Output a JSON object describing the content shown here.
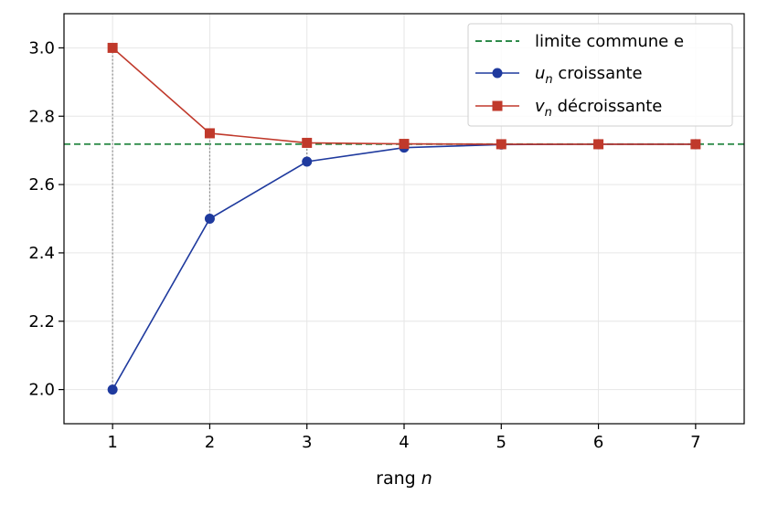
{
  "chart_data": {
    "type": "line",
    "xlabel_prefix": "rang ",
    "xlabel_var": "n",
    "xlim": [
      0.5,
      7.5
    ],
    "ylim": [
      1.9,
      3.1
    ],
    "x_ticks": [
      1,
      2,
      3,
      4,
      5,
      6,
      7
    ],
    "y_ticks": [
      2.0,
      2.2,
      2.4,
      2.6,
      2.8,
      3.0
    ],
    "grid": true,
    "legend_position": "top-right",
    "limit": {
      "name": "limite commune e",
      "value": 2.71828,
      "color": "#2e8b4a"
    },
    "series": [
      {
        "name_var": "u",
        "name_sub": "n",
        "name_rest": " croissante",
        "marker": "circle",
        "color": "#1f3a9e",
        "x": [
          1,
          2,
          3,
          4,
          5,
          6,
          7
        ],
        "values": [
          2.0,
          2.5,
          2.667,
          2.708,
          2.717,
          2.718,
          2.718
        ]
      },
      {
        "name_var": "v",
        "name_sub": "n",
        "name_rest": " décroissante",
        "marker": "square",
        "color": "#c0392b",
        "x": [
          1,
          2,
          3,
          4,
          5,
          6,
          7
        ],
        "values": [
          3.0,
          2.75,
          2.722,
          2.719,
          2.718,
          2.718,
          2.718
        ]
      }
    ],
    "connectors_x": [
      1,
      2,
      3
    ]
  }
}
